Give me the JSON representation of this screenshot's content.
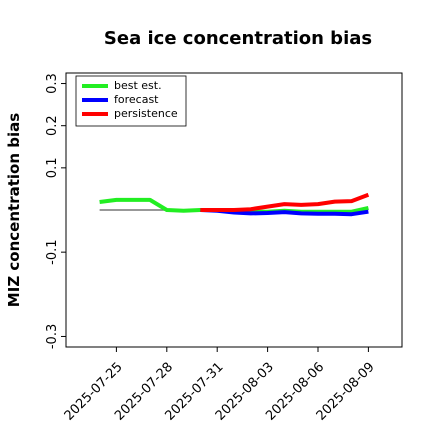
{
  "chart_data": {
    "type": "line",
    "title": "Sea ice concentration bias",
    "y_label": "MIZ concentration bias",
    "x": [
      "2025-07-24",
      "2025-07-25",
      "2025-07-26",
      "2025-07-27",
      "2025-07-28",
      "2025-07-29",
      "2025-07-30",
      "2025-07-31",
      "2025-08-01",
      "2025-08-02",
      "2025-08-03",
      "2025-08-04",
      "2025-08-05",
      "2025-08-06",
      "2025-08-07",
      "2025-08-08",
      "2025-08-09"
    ],
    "series": [
      {
        "name": "best est.",
        "color": "#22ee22",
        "values": [
          0.019,
          0.024,
          0.024,
          0.024,
          0,
          -0.002,
          0,
          0,
          -0.002,
          -0.004,
          -0.004,
          -0.002,
          -0.004,
          -0.004,
          -0.004,
          -0.004,
          0.005
        ]
      },
      {
        "name": "forecast",
        "color": "#0000ff",
        "values": [
          null,
          null,
          null,
          null,
          null,
          null,
          0,
          -0.002,
          -0.006,
          -0.008,
          -0.007,
          -0.005,
          -0.008,
          -0.009,
          -0.009,
          -0.01,
          -0.004
        ]
      },
      {
        "name": "persistence",
        "color": "#ff0000",
        "values": [
          null,
          null,
          null,
          null,
          null,
          null,
          0,
          0,
          0,
          0.002,
          0.008,
          0.014,
          0.012,
          0.014,
          0.02,
          0.021,
          0.036
        ]
      }
    ],
    "reference_line": {
      "x": [
        "2025-07-24",
        "2025-07-30"
      ],
      "values": [
        0,
        0
      ],
      "color": "#777777"
    },
    "xlim": [
      "2025-07-22",
      "2025-08-11"
    ],
    "xticks": [
      "2025-07-25",
      "2025-07-28",
      "2025-07-31",
      "2025-08-03",
      "2025-08-06",
      "2025-08-09"
    ],
    "highlight_xtick": "2025-07-31",
    "highlight_color": "#228b22",
    "ylim": [
      -0.325,
      0.325
    ],
    "yticks": [
      -0.3,
      -0.1,
      0.1,
      0.2,
      0.3
    ],
    "legend": "upper left"
  }
}
